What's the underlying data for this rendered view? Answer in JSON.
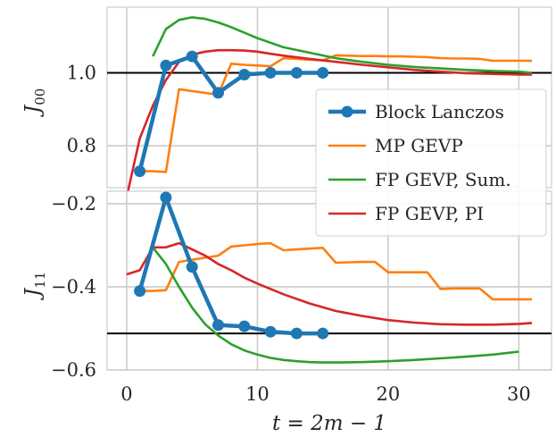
{
  "chart_data": [
    {
      "type": "line",
      "ylabel_main": "J",
      "ylabel_sub": "00",
      "xlim": [
        -1.5,
        32.5
      ],
      "ylim": [
        0.685,
        1.18
      ],
      "yticks": [
        0.8,
        1.0
      ],
      "ytick_labels": [
        "0.8",
        "1.0"
      ],
      "xticks": [
        0,
        10,
        20,
        30
      ],
      "grid": true,
      "reference_line": 1.0,
      "series": [
        {
          "name": "Block Lanczos",
          "color": "#1f77b4",
          "markers": true,
          "x": [
            1,
            3,
            5,
            7,
            9,
            11,
            13,
            15
          ],
          "y": [
            0.73,
            1.02,
            1.045,
            0.945,
            0.995,
            1.0,
            1.0,
            1.0
          ]
        },
        {
          "name": "MP GEVP",
          "color": "#ff7f0e",
          "markers": false,
          "x": [
            1,
            2,
            3,
            4,
            5,
            6,
            7,
            8,
            9,
            10,
            11,
            12,
            13,
            14,
            15,
            16,
            17,
            18,
            19,
            20,
            21,
            22,
            23,
            24,
            25,
            26,
            27,
            28,
            29,
            30,
            31
          ],
          "y": [
            0.73,
            0.73,
            0.728,
            0.955,
            0.95,
            0.945,
            0.94,
            1.025,
            1.022,
            1.02,
            1.018,
            1.04,
            1.038,
            1.036,
            1.034,
            1.048,
            1.047,
            1.046,
            1.046,
            1.045,
            1.045,
            1.044,
            1.043,
            1.04,
            1.039,
            1.039,
            1.038,
            1.033,
            1.033,
            1.033,
            1.033
          ]
        },
        {
          "name": "FP GEVP, Sum.",
          "color": "#2ca02c",
          "markers": false,
          "x": [
            2,
            3,
            4,
            5,
            6,
            7,
            8,
            9,
            10,
            12,
            14,
            16,
            18,
            20,
            22,
            24,
            26,
            28,
            30,
            31
          ],
          "y": [
            1.045,
            1.12,
            1.145,
            1.152,
            1.148,
            1.138,
            1.125,
            1.11,
            1.095,
            1.07,
            1.055,
            1.04,
            1.03,
            1.022,
            1.016,
            1.012,
            1.008,
            1.005,
            1.003,
            1.0
          ]
        },
        {
          "name": "FP GEVP, PI",
          "color": "#d62728",
          "markers": false,
          "x": [
            0,
            1,
            2,
            3,
            4,
            5,
            6,
            7,
            8,
            9,
            10,
            11,
            12,
            14,
            16,
            18,
            20,
            22,
            24,
            26,
            28,
            30,
            31
          ],
          "y": [
            0.66,
            0.82,
            0.91,
            0.98,
            1.03,
            1.05,
            1.058,
            1.062,
            1.062,
            1.061,
            1.058,
            1.052,
            1.047,
            1.038,
            1.03,
            1.022,
            1.015,
            1.008,
            1.003,
            0.999,
            0.997,
            0.995,
            0.995
          ]
        }
      ]
    },
    {
      "type": "line",
      "ylabel_main": "J",
      "ylabel_sub": "11",
      "xlabel": "t = 2m − 1",
      "xlim": [
        -1.5,
        32.5
      ],
      "ylim": [
        -0.6,
        -0.17
      ],
      "yticks": [
        -0.6,
        -0.4,
        -0.2
      ],
      "ytick_labels": [
        "−0.6",
        "−0.4",
        "−0.2"
      ],
      "xticks": [
        0,
        10,
        20,
        30
      ],
      "xtick_labels": [
        "0",
        "10",
        "20",
        "30"
      ],
      "grid": true,
      "reference_line": -0.512,
      "series": [
        {
          "name": "Block Lanczos",
          "color": "#1f77b4",
          "markers": true,
          "x": [
            1,
            3,
            5,
            7,
            9,
            11,
            13,
            15
          ],
          "y": [
            -0.41,
            -0.185,
            -0.352,
            -0.492,
            -0.495,
            -0.508,
            -0.512,
            -0.512
          ]
        },
        {
          "name": "MP GEVP",
          "color": "#ff7f0e",
          "markers": false,
          "x": [
            1,
            2,
            3,
            4,
            5,
            6,
            7,
            8,
            9,
            10,
            11,
            12,
            13,
            14,
            15,
            16,
            17,
            18,
            19,
            20,
            21,
            22,
            23,
            24,
            25,
            26,
            27,
            28,
            29,
            30,
            31
          ],
          "y": [
            -0.41,
            -0.41,
            -0.408,
            -0.34,
            -0.335,
            -0.33,
            -0.325,
            -0.303,
            -0.3,
            -0.297,
            -0.295,
            -0.312,
            -0.31,
            -0.308,
            -0.306,
            -0.342,
            -0.341,
            -0.34,
            -0.34,
            -0.365,
            -0.365,
            -0.365,
            -0.365,
            -0.405,
            -0.404,
            -0.404,
            -0.404,
            -0.43,
            -0.43,
            -0.43,
            -0.43
          ]
        },
        {
          "name": "FP GEVP, Sum.",
          "color": "#2ca02c",
          "markers": false,
          "x": [
            2,
            3,
            4,
            5,
            6,
            7,
            8,
            9,
            10,
            11,
            12,
            13,
            14,
            15,
            16,
            18,
            20,
            22,
            24,
            26,
            28,
            30
          ],
          "y": [
            -0.305,
            -0.345,
            -0.4,
            -0.45,
            -0.49,
            -0.517,
            -0.538,
            -0.553,
            -0.563,
            -0.571,
            -0.576,
            -0.579,
            -0.581,
            -0.582,
            -0.582,
            -0.581,
            -0.579,
            -0.576,
            -0.572,
            -0.568,
            -0.563,
            -0.556
          ]
        },
        {
          "name": "FP GEVP, PI",
          "color": "#d62728",
          "markers": false,
          "x": [
            0,
            1,
            2,
            3,
            4,
            5,
            6,
            7,
            8,
            9,
            10,
            11,
            12,
            14,
            16,
            18,
            20,
            22,
            24,
            26,
            28,
            30,
            31
          ],
          "y": [
            -0.37,
            -0.36,
            -0.305,
            -0.305,
            -0.295,
            -0.31,
            -0.325,
            -0.345,
            -0.36,
            -0.378,
            -0.392,
            -0.405,
            -0.418,
            -0.44,
            -0.458,
            -0.47,
            -0.48,
            -0.486,
            -0.49,
            -0.491,
            -0.491,
            -0.489,
            -0.487
          ]
        }
      ],
      "legend": {
        "placement": "right",
        "entries": [
          {
            "label": "Block Lanczos",
            "color": "#1f77b4",
            "marker": true
          },
          {
            "label": "MP GEVP",
            "color": "#ff7f0e",
            "marker": false
          },
          {
            "label": "FP GEVP, Sum.",
            "color": "#2ca02c",
            "marker": false
          },
          {
            "label": "FP GEVP, PI",
            "color": "#d62728",
            "marker": false
          }
        ]
      }
    }
  ]
}
